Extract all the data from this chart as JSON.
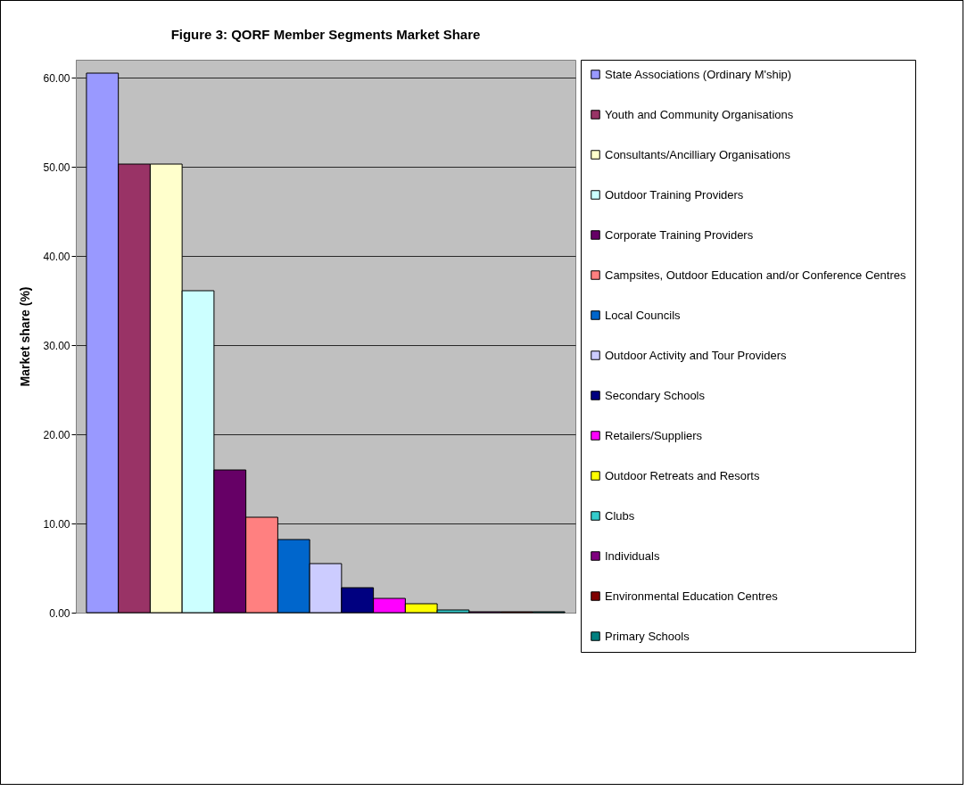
{
  "chart_data": {
    "type": "bar",
    "title": "Figure 3: QORF Member Segments Market Share",
    "ylabel": "Market share (%)",
    "categories": [
      null
    ],
    "series": [
      {
        "name": "State Associations (Ordinary M'ship)",
        "color": "#9999ff",
        "values": [
          60.5
        ]
      },
      {
        "name": "Youth and Community Organisations",
        "color": "#993366",
        "values": [
          50.3
        ]
      },
      {
        "name": "Consultants/Ancilliary Organisations",
        "color": "#ffffcc",
        "values": [
          50.3
        ]
      },
      {
        "name": "Outdoor Training Providers",
        "color": "#ccffff",
        "values": [
          36.1
        ]
      },
      {
        "name": "Corporate Training Providers",
        "color": "#660066",
        "values": [
          16
        ]
      },
      {
        "name": "Campsites, Outdoor Education and/or Conference Centres",
        "color": "#ff8080",
        "values": [
          10.7
        ]
      },
      {
        "name": "Local Councils",
        "color": "#0066cc",
        "values": [
          8.2
        ]
      },
      {
        "name": "Outdoor Activity and Tour Providers",
        "color": "#ccccff",
        "values": [
          5.5
        ]
      },
      {
        "name": "Secondary Schools",
        "color": "#000080",
        "values": [
          2.8
        ]
      },
      {
        "name": "Retailers/Suppliers",
        "color": "#ff00ff",
        "values": [
          1.6
        ]
      },
      {
        "name": "Outdoor Retreats and Resorts",
        "color": "#ffff00",
        "values": [
          1
        ]
      },
      {
        "name": "Clubs",
        "color": "#33cccc",
        "values": [
          0.3
        ]
      },
      {
        "name": "Individuals",
        "color": "#800080",
        "values": [
          0.1
        ]
      },
      {
        "name": "Environmental Education Centres",
        "color": "#800000",
        "values": [
          0.1
        ]
      },
      {
        "name": "Primary Schools",
        "color": "#008080",
        "values": [
          0.1
        ]
      }
    ],
    "ylim": [
      0,
      62
    ],
    "yticks": [
      {
        "value": 0,
        "label": "0.00"
      },
      {
        "value": 10,
        "label": "10.00"
      },
      {
        "value": 20,
        "label": "20.00"
      },
      {
        "value": 30,
        "label": "30.00"
      },
      {
        "value": 40,
        "label": "40.00"
      },
      {
        "value": 50,
        "label": "50.00"
      },
      {
        "value": 60,
        "label": "60.00"
      }
    ],
    "grid": "y",
    "legend": "right",
    "tick_labels": "y"
  }
}
